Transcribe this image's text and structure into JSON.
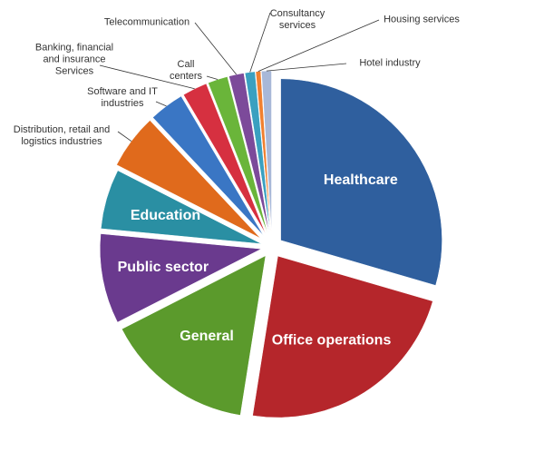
{
  "chart_data": {
    "type": "pie",
    "categories": [
      "Healthcare",
      "Office operations",
      "General",
      "Public sector",
      "Education",
      "Distribution, retail and logistics industries",
      "Software and IT industries",
      "Banking, financial and insurance Services",
      "Call centers",
      "Telecommunication",
      "Consultancy services",
      "Housing services",
      "Hotel industry"
    ],
    "values": [
      29.5,
      23,
      15,
      9,
      6,
      5.5,
      3.5,
      2.5,
      2,
      1.5,
      1,
      0.5,
      1
    ],
    "colors": [
      "#2f5f9e",
      "#b5262b",
      "#5b9a2c",
      "#6a3a8e",
      "#2a8fa3",
      "#e06a1c",
      "#3a76c4",
      "#d63040",
      "#6ab53a",
      "#7c4a9a",
      "#3aa0c0",
      "#f08030",
      "#a8b8d8"
    ]
  }
}
